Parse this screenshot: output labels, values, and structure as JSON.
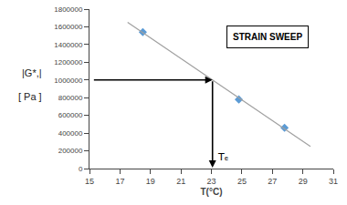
{
  "chart_data": {
    "type": "scatter",
    "title": "STRAIN SWEEP",
    "xlabel": "T(°C)",
    "ylabel": [
      "|G*,|",
      "[ Pa ]"
    ],
    "series": [
      {
        "type": "scatter",
        "marker": "diamond",
        "color": "#5b9bd5",
        "x": [
          18.5,
          24.8,
          27.8
        ],
        "values": [
          1540000,
          780000,
          460000
        ]
      },
      {
        "type": "line",
        "color": "#a0a0a0",
        "x": [
          17.5,
          29.5
        ],
        "values": [
          1650963.16,
          249098.98
        ]
      },
      {
        "type": "arrow",
        "color": "black",
        "x": [
          15.2,
          23.0723
        ],
        "values": [
          1000000,
          1000000
        ]
      },
      {
        "type": "arrow",
        "color": "black",
        "x": [
          23.0723,
          23.0723
        ],
        "values": [
          1000000,
          10000
        ]
      }
    ],
    "annotations": [
      {
        "text": "Tₑ",
        "x": 23.2723,
        "y": 130000,
        "color": "black"
      }
    ],
    "xlim": [
      15,
      31
    ],
    "xticks": [
      15,
      17,
      19,
      21,
      23,
      25,
      27,
      29,
      31
    ],
    "ylim": [
      0,
      1800000
    ],
    "yticks": [
      0,
      200000,
      400000,
      600000,
      800000,
      1000000,
      1200000,
      1400000,
      1600000,
      1800000
    ],
    "grid": false
  }
}
